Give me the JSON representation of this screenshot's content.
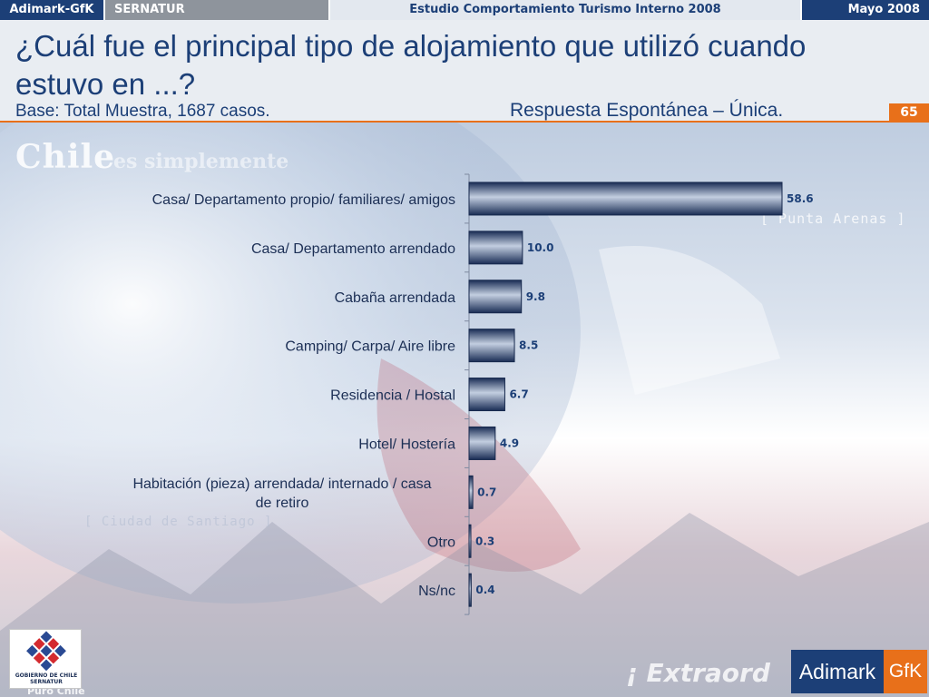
{
  "topbar": {
    "brand": "Adimark-GfK",
    "client": "SERNATUR",
    "study": "Estudio Comportamiento Turismo Interno 2008",
    "date": "Mayo 2008"
  },
  "header": {
    "title": "¿Cuál fue el principal tipo de alojamiento que utilizó cuando estuvo en ...?",
    "base": "Base: Total Muestra, 1687 casos.",
    "response_type": "Respuesta Espontánea – Única.",
    "page_number": "65"
  },
  "background": {
    "chile_text": "Chile",
    "chile_sub": "es simplemente",
    "punta_text": "[ Punta Arenas ]",
    "santiago_text": "[ Ciudad de Santiago ]",
    "extra_text": "¡ Extraord",
    "puro_text": "Puro Chile"
  },
  "logos": {
    "gobierno_line1": "GOBIERNO DE CHILE",
    "gobierno_line2": "SERNATUR",
    "adimark_left": "Adimark",
    "adimark_right": "GfK"
  },
  "colors": {
    "accent_orange": "#e8701a",
    "brand_navy": "#1c3f77",
    "bar_dark": "#1a2d55",
    "bar_light": "#c3cee0"
  },
  "chart_data": {
    "type": "bar",
    "orientation": "horizontal",
    "categories": [
      "Casa/ Departamento propio/ familiares/ amigos",
      "Casa/ Departamento arrendado",
      "Cabaña arrendada",
      "Camping/ Carpa/ Aire libre",
      "Residencia / Hostal",
      "Hotel/ Hostería",
      "Habitación (pieza) arrendada/ internado / casa de retiro",
      "Otro",
      "Ns/nc"
    ],
    "category_lines": [
      [
        "Casa/ Departamento propio/ familiares/ amigos"
      ],
      [
        "Casa/ Departamento arrendado"
      ],
      [
        "Cabaña arrendada"
      ],
      [
        "Camping/ Carpa/ Aire libre"
      ],
      [
        "Residencia / Hostal"
      ],
      [
        "Hotel/ Hostería"
      ],
      [
        "Habitación (pieza) arrendada/ internado / casa",
        "de retiro"
      ],
      [
        "Otro"
      ],
      [
        "Ns/nc"
      ]
    ],
    "values": [
      58.6,
      10.0,
      9.8,
      8.5,
      6.7,
      4.9,
      0.7,
      0.3,
      0.4
    ],
    "value_labels": [
      "58.6",
      "10.0",
      "9.8",
      "8.5",
      "6.7",
      "4.9",
      "0.7",
      "0.3",
      "0.4"
    ],
    "xlim": [
      0,
      100
    ],
    "title": "",
    "xlabel": "",
    "ylabel": "",
    "grid": false,
    "legend": "none"
  }
}
